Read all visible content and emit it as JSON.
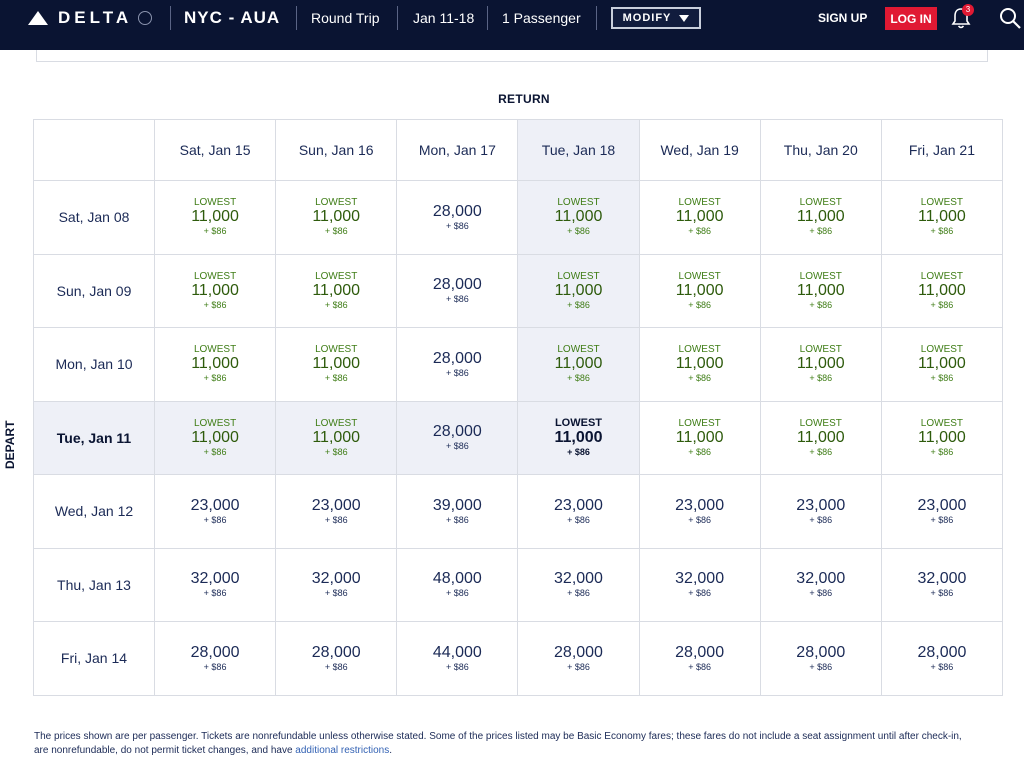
{
  "header": {
    "brand": "DELTA",
    "route": "NYC - AUA",
    "trip_type": "Round Trip",
    "dates": "Jan 11-18",
    "passengers": "1 Passenger",
    "modify_label": "MODIFY",
    "signup_label": "SIGN UP",
    "login_label": "LOG IN",
    "notification_count": "3"
  },
  "labels": {
    "return": "RETURN",
    "depart": "DEPART"
  },
  "colors": {
    "nav_bg": "#0a1432",
    "accent_red": "#e01933",
    "lowest_green": "#3f7d16",
    "highlight": "#eef0f7"
  },
  "grid": {
    "return_dates": [
      "Sat, Jan 15",
      "Sun, Jan 16",
      "Mon, Jan 17",
      "Tue, Jan 18",
      "Wed, Jan 19",
      "Thu, Jan 20",
      "Fri, Jan 21"
    ],
    "rows": [
      {
        "depart": "Sat, Jan 08",
        "cells": [
          {
            "tag": "LOWEST",
            "miles": "11,000",
            "fee": "+ $86"
          },
          {
            "tag": "LOWEST",
            "miles": "11,000",
            "fee": "+ $86"
          },
          {
            "tag": "",
            "miles": "28,000",
            "fee": "+ $86"
          },
          {
            "tag": "LOWEST",
            "miles": "11,000",
            "fee": "+ $86"
          },
          {
            "tag": "LOWEST",
            "miles": "11,000",
            "fee": "+ $86"
          },
          {
            "tag": "LOWEST",
            "miles": "11,000",
            "fee": "+ $86"
          },
          {
            "tag": "LOWEST",
            "miles": "11,000",
            "fee": "+ $86"
          }
        ]
      },
      {
        "depart": "Sun, Jan 09",
        "cells": [
          {
            "tag": "LOWEST",
            "miles": "11,000",
            "fee": "+ $86"
          },
          {
            "tag": "LOWEST",
            "miles": "11,000",
            "fee": "+ $86"
          },
          {
            "tag": "",
            "miles": "28,000",
            "fee": "+ $86"
          },
          {
            "tag": "LOWEST",
            "miles": "11,000",
            "fee": "+ $86"
          },
          {
            "tag": "LOWEST",
            "miles": "11,000",
            "fee": "+ $86"
          },
          {
            "tag": "LOWEST",
            "miles": "11,000",
            "fee": "+ $86"
          },
          {
            "tag": "LOWEST",
            "miles": "11,000",
            "fee": "+ $86"
          }
        ]
      },
      {
        "depart": "Mon, Jan 10",
        "cells": [
          {
            "tag": "LOWEST",
            "miles": "11,000",
            "fee": "+ $86"
          },
          {
            "tag": "LOWEST",
            "miles": "11,000",
            "fee": "+ $86"
          },
          {
            "tag": "",
            "miles": "28,000",
            "fee": "+ $86"
          },
          {
            "tag": "LOWEST",
            "miles": "11,000",
            "fee": "+ $86"
          },
          {
            "tag": "LOWEST",
            "miles": "11,000",
            "fee": "+ $86"
          },
          {
            "tag": "LOWEST",
            "miles": "11,000",
            "fee": "+ $86"
          },
          {
            "tag": "LOWEST",
            "miles": "11,000",
            "fee": "+ $86"
          }
        ]
      },
      {
        "depart": "Tue, Jan 11",
        "cells": [
          {
            "tag": "LOWEST",
            "miles": "11,000",
            "fee": "+ $86"
          },
          {
            "tag": "LOWEST",
            "miles": "11,000",
            "fee": "+ $86"
          },
          {
            "tag": "",
            "miles": "28,000",
            "fee": "+ $86"
          },
          {
            "tag": "LOWEST",
            "miles": "11,000",
            "fee": "+ $86"
          },
          {
            "tag": "LOWEST",
            "miles": "11,000",
            "fee": "+ $86"
          },
          {
            "tag": "LOWEST",
            "miles": "11,000",
            "fee": "+ $86"
          },
          {
            "tag": "LOWEST",
            "miles": "11,000",
            "fee": "+ $86"
          }
        ]
      },
      {
        "depart": "Wed, Jan 12",
        "cells": [
          {
            "tag": "",
            "miles": "23,000",
            "fee": "+ $86"
          },
          {
            "tag": "",
            "miles": "23,000",
            "fee": "+ $86"
          },
          {
            "tag": "",
            "miles": "39,000",
            "fee": "+ $86"
          },
          {
            "tag": "",
            "miles": "23,000",
            "fee": "+ $86"
          },
          {
            "tag": "",
            "miles": "23,000",
            "fee": "+ $86"
          },
          {
            "tag": "",
            "miles": "23,000",
            "fee": "+ $86"
          },
          {
            "tag": "",
            "miles": "23,000",
            "fee": "+ $86"
          }
        ]
      },
      {
        "depart": "Thu, Jan 13",
        "cells": [
          {
            "tag": "",
            "miles": "32,000",
            "fee": "+ $86"
          },
          {
            "tag": "",
            "miles": "32,000",
            "fee": "+ $86"
          },
          {
            "tag": "",
            "miles": "48,000",
            "fee": "+ $86"
          },
          {
            "tag": "",
            "miles": "32,000",
            "fee": "+ $86"
          },
          {
            "tag": "",
            "miles": "32,000",
            "fee": "+ $86"
          },
          {
            "tag": "",
            "miles": "32,000",
            "fee": "+ $86"
          },
          {
            "tag": "",
            "miles": "32,000",
            "fee": "+ $86"
          }
        ]
      },
      {
        "depart": "Fri, Jan 14",
        "cells": [
          {
            "tag": "",
            "miles": "28,000",
            "fee": "+ $86"
          },
          {
            "tag": "",
            "miles": "28,000",
            "fee": "+ $86"
          },
          {
            "tag": "",
            "miles": "44,000",
            "fee": "+ $86"
          },
          {
            "tag": "",
            "miles": "28,000",
            "fee": "+ $86"
          },
          {
            "tag": "",
            "miles": "28,000",
            "fee": "+ $86"
          },
          {
            "tag": "",
            "miles": "28,000",
            "fee": "+ $86"
          },
          {
            "tag": "",
            "miles": "28,000",
            "fee": "+ $86"
          }
        ]
      }
    ],
    "selected_depart_row": 3,
    "selected_return_col": 3
  },
  "footnote": {
    "text": "The prices shown are per passenger. Tickets are nonrefundable unless otherwise stated. Some of the prices listed may be Basic Economy fares; these fares do not include a seat assignment until after check-in, are nonrefundable, do not permit ticket changes, and have ",
    "link": "additional restrictions",
    "end": "."
  }
}
